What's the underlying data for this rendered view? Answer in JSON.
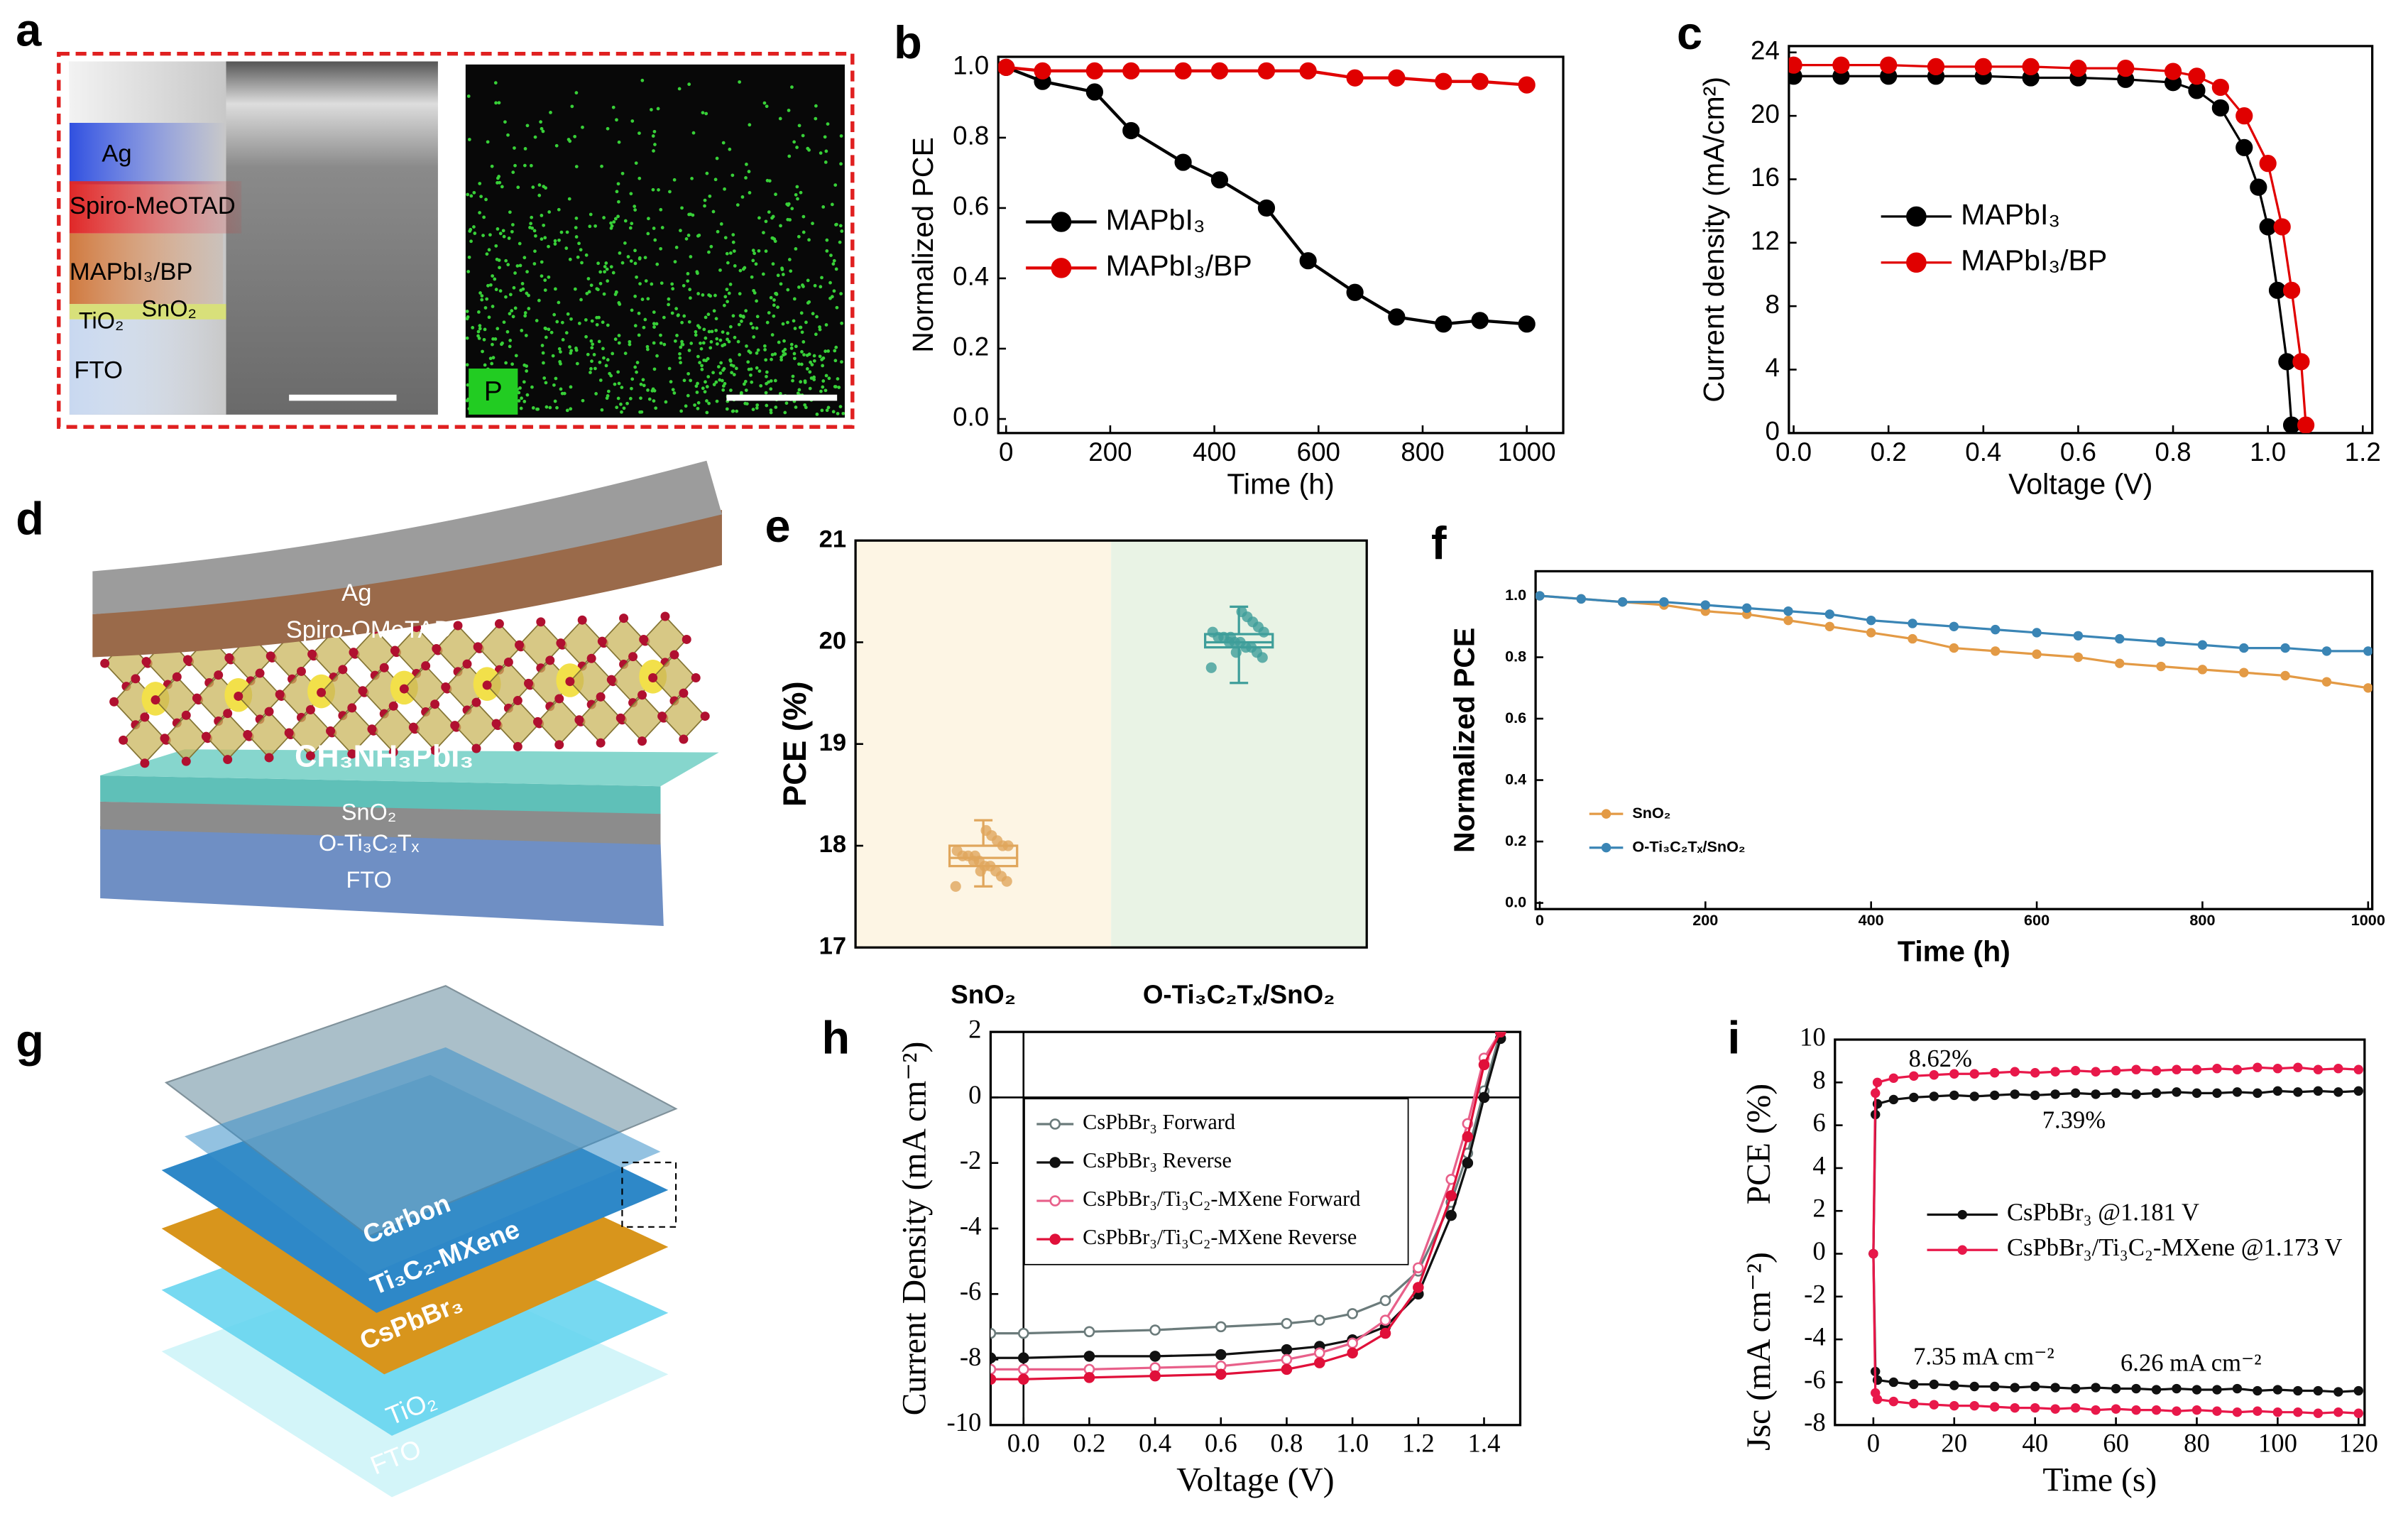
{
  "panel_labels": [
    "a",
    "b",
    "c",
    "d",
    "e",
    "f",
    "g",
    "h",
    "i"
  ],
  "diagram_a": {
    "layers": [
      "Ag",
      "Spiro-MeOTAD",
      "MAPbI₃/BP",
      "TiO₂",
      "SnO₂",
      "FTO"
    ],
    "element": "P"
  },
  "diagram_d": {
    "layers": [
      "Ag",
      "Spiro-OMeTAD",
      "CH₃NH₃PbI₃",
      "SnO₂",
      "O-Ti₃C₂Tₓ",
      "FTO"
    ]
  },
  "diagram_g": {
    "layers": [
      "Carbon",
      "Ti₃C₂-MXene",
      "CsPbBr₃",
      "TiO₂",
      "FTO"
    ]
  },
  "chart_data": [
    {
      "type": "line",
      "xlabel": "Time (h)",
      "ylabel": "Normalized PCE",
      "x": [
        0,
        70,
        170,
        240,
        340,
        410,
        500,
        580,
        670,
        750,
        840,
        910,
        1000
      ],
      "series": [
        {
          "name": "MAPbI₃",
          "color": "#000000",
          "values": [
            1.0,
            0.96,
            0.93,
            0.82,
            0.73,
            0.68,
            0.6,
            0.45,
            0.36,
            0.29,
            0.27,
            0.28,
            0.27
          ]
        },
        {
          "name": "MAPbI₃/BP",
          "color": "#e00000",
          "values": [
            1.0,
            0.99,
            0.99,
            0.99,
            0.99,
            0.99,
            0.99,
            0.99,
            0.97,
            0.97,
            0.96,
            0.96,
            0.95
          ]
        }
      ],
      "xlim": [
        -15,
        1070
      ],
      "ylim": [
        -0.04,
        1.03
      ],
      "xticks": [
        0,
        200,
        400,
        600,
        800,
        1000
      ],
      "yticks": [
        {
          "value": 0,
          "label": "0.0"
        },
        0.2,
        0.4,
        0.6,
        0.8,
        {
          "value": 1,
          "label": "1.0"
        }
      ],
      "legend": "center left"
    },
    {
      "type": "line",
      "xlabel": "Voltage (V)",
      "ylabel": "Current density (mA/cm²)",
      "series": [
        {
          "name": "MAPbI₃",
          "color": "#000000",
          "x": [
            0,
            0.1,
            0.2,
            0.3,
            0.4,
            0.5,
            0.6,
            0.7,
            0.8,
            0.85,
            0.9,
            0.95,
            0.98,
            1.0,
            1.02,
            1.04,
            1.05
          ],
          "values": [
            22.5,
            22.5,
            22.5,
            22.5,
            22.5,
            22.4,
            22.4,
            22.3,
            22.1,
            21.6,
            20.5,
            18,
            15.5,
            13,
            9,
            4.5,
            0.5
          ]
        },
        {
          "name": "MAPbI₃/BP",
          "color": "#e00000",
          "x": [
            0,
            0.1,
            0.2,
            0.3,
            0.4,
            0.5,
            0.6,
            0.7,
            0.8,
            0.85,
            0.9,
            0.95,
            1.0,
            1.03,
            1.05,
            1.07,
            1.08
          ],
          "values": [
            23.2,
            23.2,
            23.2,
            23.1,
            23.1,
            23.1,
            23.0,
            23.0,
            22.8,
            22.5,
            21.8,
            20,
            17,
            13,
            9,
            4.5,
            0.5
          ]
        }
      ],
      "xlim": [
        -0.01,
        1.22
      ],
      "ylim": [
        0,
        24.4
      ],
      "xticks": [
        {
          "value": 0,
          "label": "0.0"
        },
        0.2,
        0.4,
        0.6,
        0.8,
        {
          "value": 1,
          "label": "1.0"
        },
        1.2
      ],
      "yticks": [
        0,
        4,
        8,
        12,
        16,
        20,
        24
      ],
      "legend": "center left"
    },
    {
      "type": "box",
      "ylabel": "PCE (%)",
      "categories": [
        "SnO₂",
        "O-Ti₃C₂Tₓ/SnO₂"
      ],
      "band_colors": [
        "#fdf5e4",
        "#e9f3e5"
      ],
      "boxes": [
        {
          "color": "#e0a65c",
          "whislo": 17.6,
          "q1": 17.8,
          "median": 17.88,
          "q3": 18.0,
          "whishi": 18.25,
          "points": [
            17.6,
            17.65,
            17.7,
            17.75,
            17.8,
            17.8,
            17.85,
            17.85,
            17.9,
            17.9,
            17.95,
            18.0,
            18.0,
            18.05,
            18.1,
            18.15,
            17.75,
            17.9
          ]
        },
        {
          "color": "#3f9e9a",
          "whislo": 19.6,
          "q1": 19.95,
          "median": 20.0,
          "q3": 20.08,
          "whishi": 20.35,
          "points": [
            19.75,
            19.85,
            19.9,
            19.95,
            19.95,
            20.0,
            20.0,
            20.0,
            20.05,
            20.05,
            20.1,
            20.1,
            20.15,
            20.2,
            20.25,
            20.3,
            19.9,
            20.05
          ]
        }
      ],
      "ylim": [
        17,
        21
      ],
      "yticks": [
        17,
        18,
        19,
        20,
        21
      ]
    },
    {
      "type": "line",
      "xlabel": "Time (h)",
      "ylabel": "Normalized PCE",
      "x": [
        0,
        50,
        100,
        150,
        200,
        250,
        300,
        350,
        400,
        450,
        500,
        550,
        600,
        650,
        700,
        750,
        800,
        850,
        900,
        950,
        1000
      ],
      "series": [
        {
          "name": "SnO₂",
          "color": "#e39a45",
          "values": [
            1.0,
            0.99,
            0.98,
            0.97,
            0.95,
            0.94,
            0.92,
            0.9,
            0.88,
            0.86,
            0.83,
            0.82,
            0.81,
            0.8,
            0.78,
            0.77,
            0.76,
            0.75,
            0.74,
            0.72,
            0.7
          ]
        },
        {
          "name": "O-Ti₃C₂Tₓ/SnO₂",
          "color": "#3a85b5",
          "values": [
            1.0,
            0.99,
            0.98,
            0.98,
            0.97,
            0.96,
            0.95,
            0.94,
            0.92,
            0.91,
            0.9,
            0.89,
            0.88,
            0.87,
            0.86,
            0.85,
            0.84,
            0.83,
            0.83,
            0.82,
            0.82
          ]
        }
      ],
      "xlim": [
        -5,
        1005
      ],
      "ylim": [
        -0.02,
        1.08
      ],
      "xticks": [
        0,
        200,
        400,
        600,
        800,
        1000
      ],
      "yticks": [
        {
          "value": 0,
          "label": "0.0"
        },
        0.2,
        0.4,
        0.6,
        0.8,
        {
          "value": 1,
          "label": "1.0"
        }
      ],
      "legend": "bottom left"
    },
    {
      "type": "line",
      "xlabel": "Voltage (V)",
      "ylabel": "Current Density (mA cm⁻²)",
      "x": [
        -0.1,
        0,
        0.2,
        0.4,
        0.6,
        0.8,
        0.9,
        1.0,
        1.1,
        1.2,
        1.3,
        1.35,
        1.4,
        1.45
      ],
      "series": [
        {
          "name": "CsPbBr₃ Forward",
          "color": "#6b7b7b",
          "marker": "open",
          "values": [
            -7.2,
            -7.2,
            -7.15,
            -7.1,
            -7.0,
            -6.9,
            -6.8,
            -6.6,
            -6.2,
            -5.3,
            -3.2,
            -1.7,
            0.2,
            2.0
          ]
        },
        {
          "name": "CsPbBr₃ Reverse",
          "color": "#111111",
          "values": [
            -7.95,
            -7.95,
            -7.9,
            -7.9,
            -7.85,
            -7.7,
            -7.6,
            -7.4,
            -7.0,
            -6.0,
            -3.6,
            -2.0,
            0.0,
            1.8
          ]
        },
        {
          "name": "CsPbBr₃/Ti₃C₂-MXene Forward",
          "color": "#e8608a",
          "marker": "open",
          "values": [
            -8.3,
            -8.3,
            -8.3,
            -8.25,
            -8.2,
            -8.0,
            -7.8,
            -7.5,
            -6.8,
            -5.2,
            -2.5,
            -0.8,
            1.2,
            2.0
          ]
        },
        {
          "name": "CsPbBr₃/Ti₃C₂-MXene Reverse",
          "color": "#e0103a",
          "values": [
            -8.6,
            -8.6,
            -8.55,
            -8.5,
            -8.45,
            -8.3,
            -8.1,
            -7.8,
            -7.2,
            -5.8,
            -3.0,
            -1.2,
            1.0,
            2.0
          ]
        }
      ],
      "xlim": [
        -0.1,
        1.51
      ],
      "ylim": [
        -10,
        2
      ],
      "xticks": [
        {
          "value": 0,
          "label": "0.0"
        },
        0.2,
        0.4,
        0.6,
        0.8,
        {
          "value": 1,
          "label": "1.0"
        },
        1.2,
        1.4
      ],
      "yticks": [
        -10,
        -8,
        -6,
        -4,
        -2,
        0,
        2
      ],
      "legend": "top left"
    },
    {
      "type": "line",
      "xlabel": "Time (s)",
      "ylabel": "PCE (%)",
      "ylabel_lower": "Jsc (mA cm⁻²)",
      "x": [
        0,
        0.5,
        1,
        5,
        10,
        15,
        20,
        25,
        30,
        35,
        40,
        45,
        50,
        55,
        60,
        65,
        70,
        75,
        80,
        85,
        90,
        95,
        100,
        105,
        110,
        115,
        120
      ],
      "series": [
        {
          "name": "CsPbBr₃ @1.181 V",
          "color": "#111111",
          "values": [
            0,
            6.5,
            7.0,
            7.2,
            7.3,
            7.35,
            7.4,
            7.35,
            7.4,
            7.45,
            7.4,
            7.45,
            7.5,
            7.45,
            7.5,
            7.45,
            7.5,
            7.55,
            7.5,
            7.5,
            7.55,
            7.5,
            7.6,
            7.55,
            7.6,
            7.55,
            7.6
          ]
        },
        {
          "name": "CsPbBr₃/Ti₃C₂-MXene @1.173 V",
          "color": "#e8184a",
          "values": [
            0,
            7.5,
            8.0,
            8.2,
            8.3,
            8.35,
            8.4,
            8.4,
            8.45,
            8.5,
            8.45,
            8.5,
            8.55,
            8.5,
            8.55,
            8.6,
            8.55,
            8.6,
            8.6,
            8.65,
            8.6,
            8.7,
            8.65,
            8.7,
            8.6,
            8.65,
            8.6
          ]
        },
        {
          "color": "#111111",
          "values": [
            0,
            -5.5,
            -5.9,
            -6.0,
            -6.1,
            -6.1,
            -6.15,
            -6.2,
            -6.2,
            -6.25,
            -6.2,
            -6.25,
            -6.3,
            -6.25,
            -6.3,
            -6.3,
            -6.35,
            -6.3,
            -6.35,
            -6.35,
            -6.3,
            -6.4,
            -6.35,
            -6.4,
            -6.4,
            -6.45,
            -6.4
          ]
        },
        {
          "color": "#e8184a",
          "values": [
            0,
            -6.5,
            -6.8,
            -6.9,
            -7.0,
            -7.05,
            -7.1,
            -7.1,
            -7.15,
            -7.2,
            -7.2,
            -7.25,
            -7.2,
            -7.3,
            -7.25,
            -7.3,
            -7.3,
            -7.35,
            -7.3,
            -7.35,
            -7.4,
            -7.35,
            -7.4,
            -7.4,
            -7.45,
            -7.4,
            -7.45
          ]
        }
      ],
      "annotations": [
        "8.62%",
        "7.39%",
        "7.35 mA cm⁻²",
        "6.26 mA cm⁻²"
      ],
      "xlim": [
        -9.5,
        121.5
      ],
      "ylim": [
        -8,
        10
      ],
      "xticks": [
        0,
        20,
        40,
        60,
        80,
        100,
        120
      ],
      "yticks": [
        -8,
        -6,
        -4,
        -2,
        0,
        2,
        4,
        6,
        8,
        10
      ],
      "legend": "center left"
    }
  ]
}
